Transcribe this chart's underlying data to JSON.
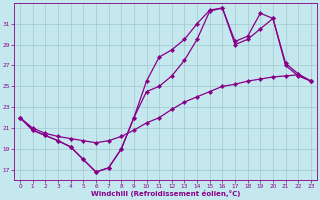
{
  "xlabel": "Windchill (Refroidissement éolien,°C)",
  "bg_color": "#c5e8ef",
  "line_color": "#880088",
  "grid_color": "#a0c8d0",
  "xlim": [
    -0.5,
    23.5
  ],
  "ylim": [
    16.0,
    33.0
  ],
  "xticks": [
    0,
    1,
    2,
    3,
    4,
    5,
    6,
    7,
    8,
    9,
    10,
    11,
    12,
    13,
    14,
    15,
    16,
    17,
    18,
    19,
    20,
    21,
    22,
    23
  ],
  "yticks": [
    17,
    19,
    21,
    23,
    25,
    27,
    29,
    31
  ],
  "line1_x": [
    0,
    1,
    2,
    3,
    4,
    5,
    6,
    7,
    8,
    9,
    10,
    11,
    12,
    13,
    14,
    15,
    16,
    17,
    18,
    19,
    20,
    21,
    22,
    23
  ],
  "line1_y": [
    22.0,
    20.8,
    20.3,
    19.8,
    19.2,
    18.0,
    16.8,
    17.2,
    19.0,
    22.0,
    25.5,
    27.8,
    28.5,
    29.5,
    31.0,
    32.3,
    32.5,
    29.0,
    29.5,
    30.5,
    31.5,
    27.0,
    26.0,
    25.5
  ],
  "line2_x": [
    0,
    1,
    2,
    3,
    4,
    5,
    6,
    7,
    8,
    9,
    10,
    11,
    12,
    13,
    14,
    15,
    16,
    17,
    18,
    19,
    20,
    21,
    22,
    23
  ],
  "line2_y": [
    22.0,
    20.8,
    20.3,
    19.8,
    19.2,
    18.0,
    16.8,
    17.2,
    19.0,
    22.0,
    24.5,
    25.0,
    26.0,
    27.5,
    29.5,
    32.2,
    32.5,
    29.3,
    29.8,
    32.0,
    31.5,
    27.2,
    26.2,
    25.5
  ],
  "line3_x": [
    0,
    1,
    2,
    3,
    4,
    5,
    6,
    7,
    8,
    9,
    10,
    11,
    12,
    13,
    14,
    15,
    16,
    17,
    18,
    19,
    20,
    21,
    22,
    23
  ],
  "line3_y": [
    22.0,
    21.0,
    20.5,
    20.2,
    20.0,
    19.8,
    19.6,
    19.8,
    20.2,
    20.8,
    21.5,
    22.0,
    22.8,
    23.5,
    24.0,
    24.5,
    25.0,
    25.2,
    25.5,
    25.7,
    25.9,
    26.0,
    26.1,
    25.5
  ],
  "linewidth": 0.9,
  "markersize": 2.2
}
